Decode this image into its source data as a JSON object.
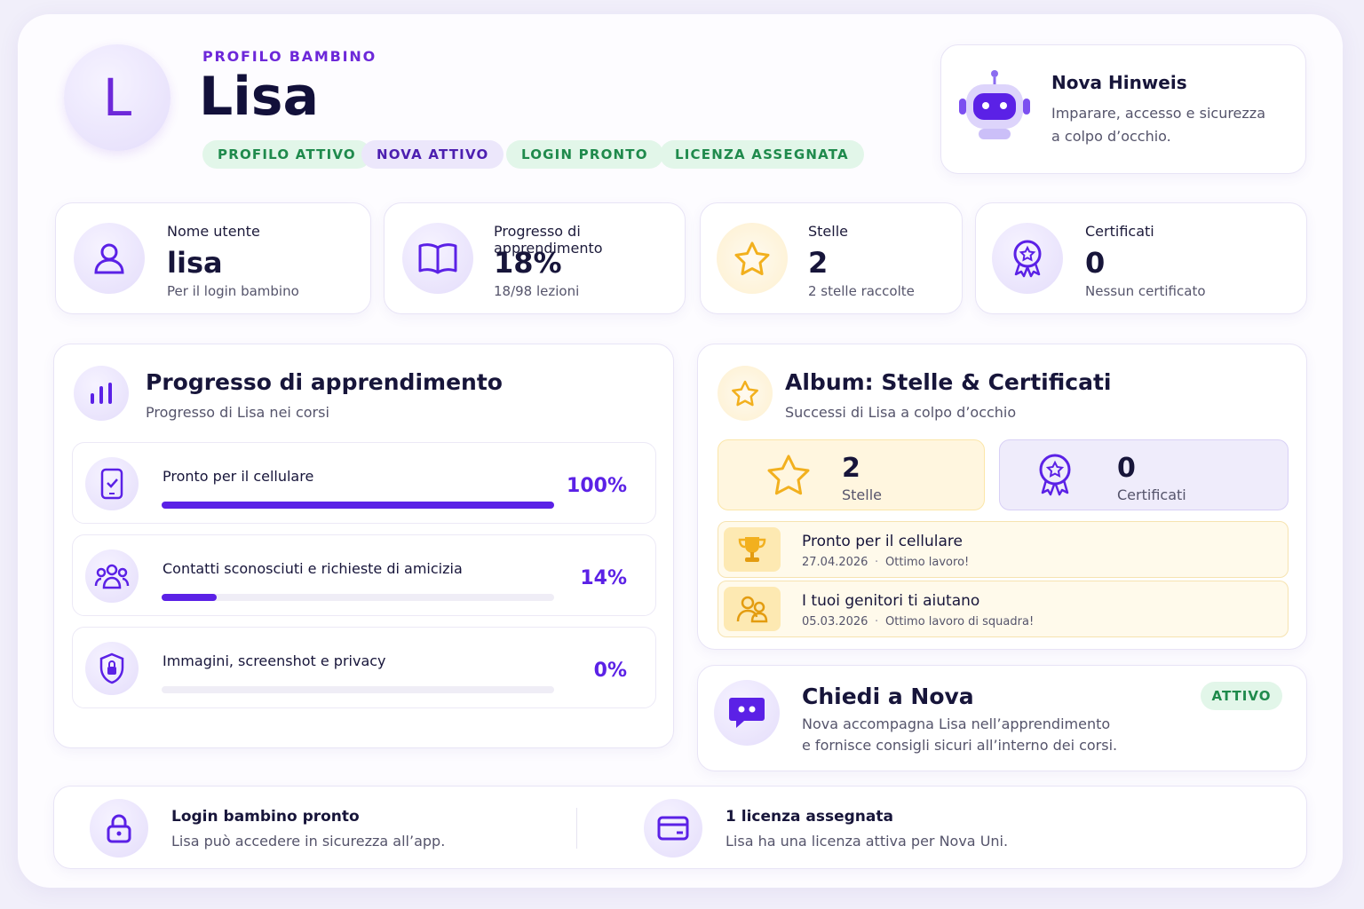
{
  "header": {
    "avatar": "L",
    "eyebrow": "PROFILO BAMBINO",
    "name": "Lisa",
    "badges": [
      "PROFILO ATTIVO",
      "NOVA ATTIVO",
      "LOGIN PRONTO",
      "LICENZA ASSEGNATA"
    ]
  },
  "hint": {
    "title": "Nova Hinweis",
    "text": "Imparare, accesso e sicurezza a colpo d’occhio."
  },
  "stats": [
    {
      "label": "Nome utente",
      "value": "lisa",
      "note": "Per il login bambino"
    },
    {
      "label": "Progresso di apprendimento",
      "value": "18%",
      "note": "18/98 lezioni"
    },
    {
      "label": "Stelle",
      "value": "2",
      "note": "2 stelle raccolte"
    },
    {
      "label": "Certificati",
      "value": "0",
      "note": "Nessun certificato"
    }
  ],
  "progress_panel": {
    "title": "Progresso di apprendimento",
    "subtitle": "Progresso di Lisa nei corsi",
    "courses": [
      {
        "name": "Pronto per il cellulare",
        "progress": 100,
        "progress_label": "100%"
      },
      {
        "name": "Contatti sconosciuti e richieste di amicizia",
        "progress": 14,
        "progress_label": "14%"
      },
      {
        "name": "Immagini, screenshot e privacy",
        "progress": 0,
        "progress_label": "0%"
      }
    ]
  },
  "album": {
    "title": "Album: Stelle & Certificati",
    "subtitle": "Successi di Lisa a colpo d’occhio",
    "summary": [
      {
        "value": "2",
        "label": "Stelle"
      },
      {
        "value": "0",
        "label": "Certificati"
      }
    ],
    "achievements": [
      {
        "title": "Pronto per il cellulare",
        "date": "27.04.2026",
        "note": "Ottimo lavoro!"
      },
      {
        "title": "I tuoi genitori ti aiutano",
        "date": "05.03.2026",
        "note": "Ottimo lavoro di squadra!"
      }
    ]
  },
  "nova_chat": {
    "title": "Chiedi a Nova",
    "badge": "ATTIVO",
    "text": "Nova accompagna Lisa nell’apprendimento e fornisce consigli sicuri all’interno dei corsi."
  },
  "footer": [
    {
      "title": "Login bambino pronto",
      "text": "Lisa può accedere in sicurezza all’app."
    },
    {
      "title": "1 licenza assegnata",
      "text": "Lisa ha una licenza attiva per Nova Uni."
    }
  ]
}
